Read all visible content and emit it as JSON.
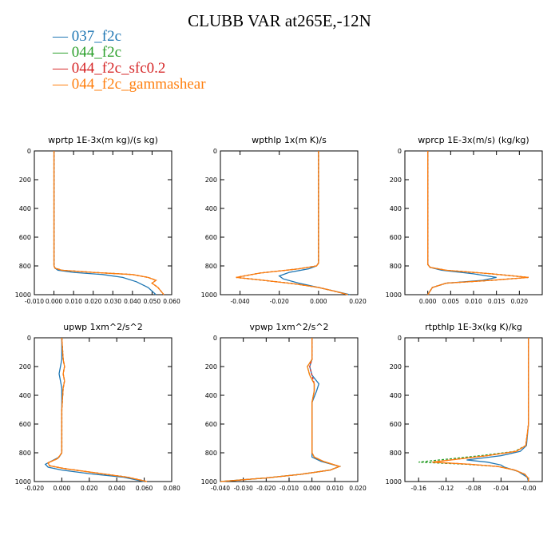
{
  "title": "CLUBB VAR at265E,-12N",
  "legend": [
    {
      "label": "037_f2c",
      "color": "#1f77b4"
    },
    {
      "label": "044_f2c",
      "color": "#2ca02c"
    },
    {
      "label": "044_f2c_sfc0.2",
      "color": "#d62728"
    },
    {
      "label": "044_f2c_gammashear",
      "color": "#ff7f0e"
    }
  ],
  "chart_data": [
    {
      "type": "line",
      "title": "wprtp  1E-3x(m kg)/(s kg)",
      "xlim": [
        -0.01,
        0.06
      ],
      "ylim": [
        1000,
        0
      ],
      "xticks": [
        -0.01,
        0.0,
        0.01,
        0.02,
        0.03,
        0.04,
        0.05,
        0.06
      ],
      "xticklabels": [
        "-0.010",
        "0.000",
        "0.010",
        "0.020",
        "0.030",
        "0.040",
        "0.050",
        "0.060"
      ],
      "yticks": [
        0,
        200,
        400,
        600,
        800,
        1000
      ],
      "series": [
        {
          "name": "037_f2c",
          "x": [
            0.0,
            0.0,
            0.0,
            0.0,
            0.0,
            0.0,
            0.0,
            0.0005,
            0.002,
            0.01,
            0.025,
            0.035,
            0.042,
            0.048,
            0.052
          ],
          "y": [
            0,
            200,
            400,
            600,
            700,
            780,
            800,
            815,
            830,
            845,
            860,
            880,
            910,
            950,
            1000
          ]
        },
        {
          "name": "044_f2c",
          "x": [
            0.0,
            0.0,
            0.0,
            0.0,
            0.0,
            0.0,
            0.0,
            0.0005,
            0.004,
            0.02,
            0.04,
            0.048,
            0.052,
            0.05,
            0.053,
            0.056
          ],
          "y": [
            0,
            200,
            400,
            600,
            700,
            780,
            800,
            815,
            830,
            845,
            860,
            880,
            900,
            920,
            950,
            1000
          ]
        },
        {
          "name": "044_f2c_sfc0.2",
          "x": [
            0.0,
            0.0,
            0.0,
            0.0,
            0.0,
            0.0,
            0.0,
            0.0005,
            0.004,
            0.02,
            0.04,
            0.048,
            0.052,
            0.05,
            0.053,
            0.056
          ],
          "y": [
            0,
            200,
            400,
            600,
            700,
            780,
            800,
            815,
            830,
            845,
            860,
            880,
            900,
            920,
            950,
            1000
          ]
        },
        {
          "name": "044_f2c_gammashear",
          "x": [
            0.0,
            0.0,
            0.0,
            0.0,
            0.0,
            0.0,
            0.0,
            0.0005,
            0.004,
            0.02,
            0.04,
            0.048,
            0.052,
            0.05,
            0.053,
            0.056
          ],
          "y": [
            0,
            200,
            400,
            600,
            700,
            780,
            800,
            815,
            830,
            845,
            860,
            880,
            900,
            920,
            950,
            1000
          ]
        }
      ]
    },
    {
      "type": "line",
      "title": "wpthlp  1x(m K)/s",
      "xlim": [
        -0.05,
        0.02
      ],
      "ylim": [
        1000,
        0
      ],
      "xticks": [
        -0.04,
        -0.02,
        0.0,
        0.02
      ],
      "xticklabels": [
        "-0.040",
        "-0.020",
        "0.000",
        "0.020"
      ],
      "yticks": [
        0,
        200,
        400,
        600,
        800,
        1000
      ],
      "series": [
        {
          "name": "037_f2c",
          "x": [
            0.0,
            0.0,
            0.0,
            0.0,
            0.0,
            0.0,
            -0.001,
            -0.005,
            -0.015,
            -0.02,
            -0.018,
            -0.01,
            0.0,
            0.008,
            0.016
          ],
          "y": [
            0,
            200,
            400,
            600,
            700,
            780,
            800,
            820,
            845,
            870,
            890,
            920,
            950,
            975,
            1000
          ]
        },
        {
          "name": "044_f2c",
          "x": [
            0.0,
            0.0,
            0.0,
            0.0,
            0.0,
            0.0,
            -0.001,
            -0.01,
            -0.03,
            -0.042,
            -0.028,
            -0.012,
            0.0,
            0.008,
            0.015
          ],
          "y": [
            0,
            200,
            400,
            600,
            700,
            780,
            800,
            820,
            850,
            880,
            900,
            925,
            950,
            975,
            1000
          ]
        },
        {
          "name": "044_f2c_sfc0.2",
          "x": [
            0.0,
            0.0,
            0.0,
            0.0,
            0.0,
            0.0,
            -0.001,
            -0.01,
            -0.03,
            -0.042,
            -0.028,
            -0.012,
            0.0,
            0.008,
            0.015
          ],
          "y": [
            0,
            200,
            400,
            600,
            700,
            780,
            800,
            820,
            850,
            880,
            900,
            925,
            950,
            975,
            1000
          ]
        },
        {
          "name": "044_f2c_gammashear",
          "x": [
            0.0,
            0.0,
            0.0,
            0.0,
            0.0,
            0.0,
            -0.001,
            -0.01,
            -0.03,
            -0.042,
            -0.028,
            -0.012,
            0.0,
            0.008,
            0.015
          ],
          "y": [
            0,
            200,
            400,
            600,
            700,
            780,
            800,
            820,
            850,
            880,
            900,
            925,
            950,
            975,
            1000
          ]
        }
      ]
    },
    {
      "type": "line",
      "title": "wprcp  1E-3x(m/s) (kg/kg)",
      "xlim": [
        -0.005,
        0.025
      ],
      "ylim": [
        1000,
        0
      ],
      "xticks": [
        0.0,
        0.005,
        0.01,
        0.015,
        0.02
      ],
      "xticklabels": [
        "0.000",
        "0.005",
        "0.010",
        "0.015",
        "0.020"
      ],
      "yticks": [
        0,
        200,
        400,
        600,
        800,
        1000
      ],
      "series": [
        {
          "name": "037_f2c",
          "x": [
            0.0,
            0.0,
            0.0,
            0.0,
            0.0,
            0.0,
            0.0,
            0.0005,
            0.003,
            0.01,
            0.015,
            0.012,
            0.004,
            0.001,
            0.0
          ],
          "y": [
            0,
            200,
            400,
            600,
            700,
            770,
            790,
            810,
            830,
            855,
            880,
            900,
            920,
            950,
            1000
          ]
        },
        {
          "name": "044_f2c",
          "x": [
            0.0,
            0.0,
            0.0,
            0.0,
            0.0,
            0.0,
            0.0,
            0.0005,
            0.004,
            0.014,
            0.022,
            0.014,
            0.004,
            0.001,
            0.0
          ],
          "y": [
            0,
            200,
            400,
            600,
            700,
            770,
            790,
            810,
            830,
            855,
            880,
            900,
            920,
            950,
            1000
          ]
        },
        {
          "name": "044_f2c_sfc0.2",
          "x": [
            0.0,
            0.0,
            0.0,
            0.0,
            0.0,
            0.0,
            0.0,
            0.0005,
            0.004,
            0.014,
            0.022,
            0.014,
            0.004,
            0.001,
            0.0
          ],
          "y": [
            0,
            200,
            400,
            600,
            700,
            770,
            790,
            810,
            830,
            855,
            880,
            900,
            920,
            950,
            1000
          ]
        },
        {
          "name": "044_f2c_gammashear",
          "x": [
            0.0,
            0.0,
            0.0,
            0.0,
            0.0,
            0.0,
            0.0,
            0.0005,
            0.004,
            0.014,
            0.022,
            0.014,
            0.004,
            0.001,
            0.0
          ],
          "y": [
            0,
            200,
            400,
            600,
            700,
            770,
            790,
            810,
            830,
            855,
            880,
            900,
            920,
            950,
            1000
          ]
        }
      ]
    },
    {
      "type": "line",
      "title": "upwp  1xm^2/s^2",
      "xlim": [
        -0.02,
        0.08
      ],
      "ylim": [
        1000,
        0
      ],
      "xticks": [
        -0.02,
        0.0,
        0.02,
        0.04,
        0.06,
        0.08
      ],
      "xticklabels": [
        "-0.020",
        "0.000",
        "0.020",
        "0.040",
        "0.060",
        "0.080"
      ],
      "yticks": [
        0,
        200,
        400,
        600,
        800,
        1000
      ],
      "series": [
        {
          "name": "037_f2c",
          "x": [
            0.0,
            0.0,
            -0.001,
            -0.002,
            -0.001,
            0.0,
            0.0,
            0.0,
            -0.002,
            -0.008,
            -0.012,
            -0.01,
            0.0,
            0.02,
            0.045,
            0.06
          ],
          "y": [
            0,
            150,
            200,
            250,
            300,
            350,
            500,
            800,
            830,
            860,
            880,
            900,
            920,
            945,
            970,
            1000
          ]
        },
        {
          "name": "044_f2c",
          "x": [
            0.0,
            0.001,
            0.002,
            0.001,
            0.002,
            0.001,
            0.0,
            0.0,
            -0.003,
            -0.01,
            -0.009,
            0.002,
            0.025,
            0.048,
            0.062
          ],
          "y": [
            0,
            150,
            200,
            250,
            300,
            350,
            500,
            800,
            840,
            870,
            890,
            910,
            940,
            970,
            1000
          ]
        },
        {
          "name": "044_f2c_sfc0.2",
          "x": [
            0.0,
            0.001,
            0.002,
            0.001,
            0.002,
            0.001,
            0.0,
            0.0,
            -0.003,
            -0.01,
            -0.009,
            0.002,
            0.025,
            0.048,
            0.062
          ],
          "y": [
            0,
            150,
            200,
            250,
            300,
            350,
            500,
            800,
            840,
            870,
            890,
            910,
            940,
            970,
            1000
          ]
        },
        {
          "name": "044_f2c_gammashear",
          "x": [
            0.0,
            0.001,
            0.002,
            0.001,
            0.002,
            0.001,
            0.0,
            0.0,
            -0.003,
            -0.01,
            -0.009,
            0.002,
            0.025,
            0.048,
            0.062
          ],
          "y": [
            0,
            150,
            200,
            250,
            300,
            350,
            500,
            800,
            840,
            870,
            890,
            910,
            940,
            970,
            1000
          ]
        }
      ]
    },
    {
      "type": "line",
      "title": "vpwp  1xm^2/s^2",
      "xlim": [
        -0.04,
        0.02
      ],
      "ylim": [
        1000,
        0
      ],
      "xticks": [
        -0.04,
        -0.03,
        -0.02,
        -0.01,
        0.0,
        0.01,
        0.02
      ],
      "xticklabels": [
        "-0.040",
        "-0.030",
        "-0.020",
        "-0.010",
        "0.000",
        "0.010",
        "0.020"
      ],
      "yticks": [
        0,
        200,
        400,
        600,
        800,
        1000
      ],
      "series": [
        {
          "name": "037_f2c",
          "x": [
            0.0,
            0.0,
            -0.001,
            0.0,
            0.003,
            0.002,
            0.0,
            0.0,
            0.0,
            0.004,
            0.012,
            0.008,
            -0.005,
            -0.02,
            -0.04
          ],
          "y": [
            0,
            150,
            200,
            260,
            320,
            370,
            450,
            800,
            830,
            860,
            895,
            920,
            950,
            975,
            1000
          ]
        },
        {
          "name": "044_f2c",
          "x": [
            0.0,
            0.0,
            -0.002,
            -0.001,
            0.001,
            0.001,
            0.0,
            0.0,
            0.001,
            0.005,
            0.012,
            0.008,
            -0.005,
            -0.02,
            -0.04
          ],
          "y": [
            0,
            150,
            200,
            260,
            320,
            370,
            450,
            800,
            830,
            860,
            895,
            920,
            950,
            975,
            1000
          ]
        },
        {
          "name": "044_f2c_sfc0.2",
          "x": [
            0.0,
            0.0,
            -0.001,
            0.0,
            0.001,
            0.001,
            0.0,
            0.0,
            0.001,
            0.005,
            0.012,
            0.008,
            -0.005,
            -0.02,
            -0.04
          ],
          "y": [
            0,
            150,
            200,
            260,
            320,
            370,
            450,
            800,
            830,
            860,
            895,
            920,
            950,
            975,
            1000
          ]
        },
        {
          "name": "044_f2c_gammashear",
          "x": [
            0.0,
            0.0,
            -0.002,
            -0.001,
            0.001,
            0.001,
            0.0,
            0.0,
            0.001,
            0.005,
            0.012,
            0.008,
            -0.005,
            -0.02,
            -0.04
          ],
          "y": [
            0,
            150,
            200,
            260,
            320,
            370,
            450,
            800,
            830,
            860,
            895,
            920,
            950,
            975,
            1000
          ]
        }
      ]
    },
    {
      "type": "line",
      "title": "rtpthlp  1E-3x(kg K)/kg",
      "xlim": [
        -0.18,
        0.02
      ],
      "ylim": [
        1000,
        0
      ],
      "xticks": [
        -0.16,
        -0.12,
        -0.08,
        -0.04,
        0.0
      ],
      "xticklabels": [
        "-0.16",
        "-0.12",
        "-0.08",
        "-0.04",
        "-0.00"
      ],
      "yticks": [
        0,
        200,
        400,
        600,
        800,
        1000
      ],
      "series": [
        {
          "name": "037_f2c",
          "x": [
            0.0,
            0.0,
            0.0,
            0.0,
            -0.003,
            -0.012,
            -0.04,
            -0.09,
            -0.06,
            -0.04,
            -0.035,
            -0.015,
            -0.002,
            0.0
          ],
          "y": [
            0,
            200,
            400,
            600,
            750,
            790,
            820,
            850,
            865,
            885,
            900,
            930,
            970,
            1000
          ]
        },
        {
          "name": "044_f2c",
          "x": [
            0.0,
            0.0,
            0.0,
            0.0,
            -0.004,
            -0.02,
            -0.07,
            -0.16,
            -0.09,
            -0.045,
            -0.02,
            -0.005,
            0.0,
            0.0
          ],
          "y": [
            0,
            200,
            400,
            600,
            750,
            790,
            820,
            865,
            880,
            895,
            920,
            950,
            980,
            1000
          ]
        },
        {
          "name": "044_f2c_sfc0.2",
          "x": [
            0.0,
            0.0,
            0.0,
            0.0,
            -0.004,
            -0.018,
            -0.06,
            -0.14,
            -0.085,
            -0.045,
            -0.02,
            -0.005,
            0.0,
            0.0
          ],
          "y": [
            0,
            200,
            400,
            600,
            750,
            790,
            820,
            865,
            880,
            895,
            920,
            950,
            980,
            1000
          ]
        },
        {
          "name": "044_f2c_gammashear",
          "x": [
            0.0,
            0.0,
            0.0,
            0.0,
            -0.004,
            -0.018,
            -0.06,
            -0.14,
            -0.085,
            -0.045,
            -0.02,
            -0.005,
            0.0,
            0.0
          ],
          "y": [
            0,
            200,
            400,
            600,
            750,
            790,
            820,
            865,
            880,
            895,
            920,
            950,
            980,
            1000
          ]
        }
      ]
    }
  ]
}
